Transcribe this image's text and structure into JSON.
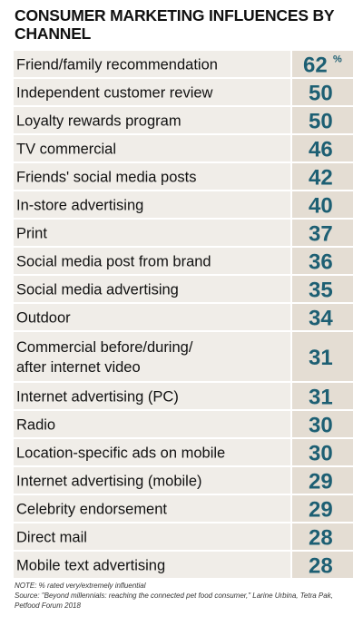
{
  "chart_data": {
    "type": "table",
    "title": "CONSUMER MARKETING INFLUENCES BY CHANNEL",
    "unit_marker": "%",
    "categories": [
      "Friend/family recommendation",
      "Independent customer review",
      "Loyalty rewards program",
      "TV commercial",
      "Friends' social media posts",
      "In-store advertising",
      "Print",
      "Social media post from brand",
      "Social media advertising",
      "Outdoor",
      "Commercial before/during/\nafter internet video",
      "Internet advertising (PC)",
      "Radio",
      "Location-specific ads on mobile",
      "Internet advertising (mobile)",
      "Celebrity endorsement",
      "Direct mail",
      "Mobile text advertising"
    ],
    "values": [
      62,
      50,
      50,
      46,
      42,
      40,
      37,
      36,
      35,
      34,
      31,
      31,
      30,
      30,
      29,
      29,
      28,
      28
    ],
    "colors": {
      "label_bg": "#f0ede8",
      "value_bg": "#e4ddd3",
      "value_text": "#1d5f73",
      "text": "#111111"
    }
  },
  "notes": {
    "note": "NOTE: % rated very/extremely influential",
    "source_line1": "Source: \"Beyond millennials: reaching the connected pet food consumer,\" Larine Urbina, Tetra Pak,",
    "source_line2": "Petfood Forum 2018"
  }
}
